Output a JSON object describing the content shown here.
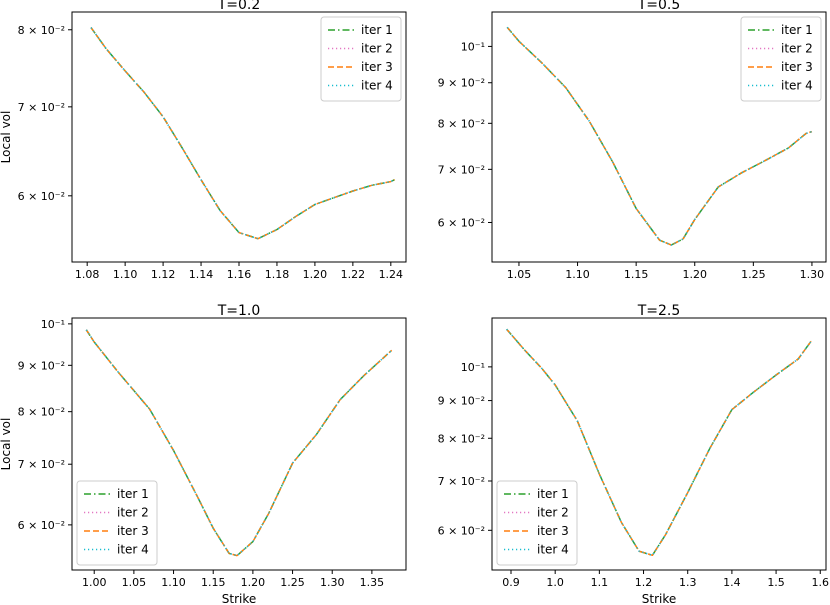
{
  "chart_data": [
    {
      "type": "line",
      "title": "T=0.2",
      "xlabel": "",
      "ylabel": "Local vol",
      "x_ticks": [
        "1.08",
        "1.10",
        "1.12",
        "1.14",
        "1.16",
        "1.18",
        "1.20",
        "1.22",
        "1.24"
      ],
      "y_ticks": [
        "6 × 10⁻²",
        "7 × 10⁻²",
        "8 × 10⁻²"
      ],
      "y_scale": "log",
      "xlim": [
        1.072,
        1.248
      ],
      "ylim": [
        0.0535,
        0.0825
      ],
      "legend": "top-right",
      "grid": false,
      "x": [
        1.082,
        1.09,
        1.1,
        1.11,
        1.12,
        1.13,
        1.14,
        1.15,
        1.16,
        1.17,
        1.18,
        1.19,
        1.2,
        1.21,
        1.22,
        1.23,
        1.24,
        1.242
      ],
      "series": [
        {
          "name": "iter 1",
          "values": [
            0.0803,
            0.0774,
            0.0745,
            0.0718,
            0.0688,
            0.0652,
            0.0617,
            0.0585,
            0.0563,
            0.0557,
            0.0566,
            0.0579,
            0.0591,
            0.0598,
            0.0605,
            0.0611,
            0.0615,
            0.0617
          ]
        },
        {
          "name": "iter 2",
          "values": [
            0.0803,
            0.0774,
            0.0745,
            0.0718,
            0.0688,
            0.0652,
            0.0617,
            0.0585,
            0.0563,
            0.0557,
            0.0566,
            0.0579,
            0.0591,
            0.0598,
            0.0605,
            0.0611,
            0.0615,
            0.0617
          ]
        },
        {
          "name": "iter 3",
          "values": [
            0.0803,
            0.0774,
            0.0745,
            0.0718,
            0.0688,
            0.0652,
            0.0617,
            0.0585,
            0.0563,
            0.0557,
            0.0566,
            0.0579,
            0.0591,
            0.0598,
            0.0605,
            0.0611,
            0.0615,
            0.0617
          ]
        },
        {
          "name": "iter 4",
          "values": [
            0.0803,
            0.0774,
            0.0745,
            0.0718,
            0.0688,
            0.0652,
            0.0617,
            0.0585,
            0.0563,
            0.0557,
            0.0566,
            0.0579,
            0.0591,
            0.0598,
            0.0605,
            0.0611,
            0.0615,
            0.0617
          ]
        }
      ]
    },
    {
      "type": "line",
      "title": "T=0.5",
      "xlabel": "",
      "ylabel": "",
      "x_ticks": [
        "1.05",
        "1.10",
        "1.15",
        "1.20",
        "1.25",
        "1.30"
      ],
      "y_ticks": [
        "6 × 10⁻²",
        "7 × 10⁻²",
        "8 × 10⁻²",
        "9 × 10⁻²",
        "10⁻¹"
      ],
      "y_scale": "log",
      "xlim": [
        1.027,
        1.312
      ],
      "ylim": [
        0.0535,
        0.1105
      ],
      "legend": "top-right",
      "grid": false,
      "x": [
        1.04,
        1.05,
        1.07,
        1.09,
        1.11,
        1.13,
        1.15,
        1.17,
        1.18,
        1.19,
        1.2,
        1.22,
        1.24,
        1.26,
        1.28,
        1.295,
        1.3
      ],
      "series": [
        {
          "name": "iter 1",
          "values": [
            0.1057,
            0.1015,
            0.0952,
            0.0887,
            0.0805,
            0.0715,
            0.0625,
            0.057,
            0.0562,
            0.0572,
            0.0605,
            0.0665,
            0.0693,
            0.0718,
            0.0745,
            0.0777,
            0.0781
          ]
        },
        {
          "name": "iter 2",
          "values": [
            0.1057,
            0.1015,
            0.0952,
            0.0887,
            0.0805,
            0.0715,
            0.0625,
            0.057,
            0.0562,
            0.0572,
            0.0605,
            0.0665,
            0.0693,
            0.0718,
            0.0745,
            0.0777,
            0.0781
          ]
        },
        {
          "name": "iter 3",
          "values": [
            0.1057,
            0.1015,
            0.0952,
            0.0887,
            0.0805,
            0.0715,
            0.0625,
            0.057,
            0.0562,
            0.0572,
            0.0605,
            0.0665,
            0.0693,
            0.0718,
            0.0745,
            0.0777,
            0.0781
          ]
        },
        {
          "name": "iter 4",
          "values": [
            0.1057,
            0.1015,
            0.0952,
            0.0887,
            0.0805,
            0.0715,
            0.0625,
            0.057,
            0.0562,
            0.0572,
            0.0605,
            0.0665,
            0.0693,
            0.0718,
            0.0745,
            0.0777,
            0.0781
          ]
        }
      ]
    },
    {
      "type": "line",
      "title": "T=1.0",
      "xlabel": "Strike",
      "ylabel": "Local vol",
      "x_ticks": [
        "1.00",
        "1.05",
        "1.10",
        "1.15",
        "1.20",
        "1.25",
        "1.30",
        "1.35"
      ],
      "y_ticks": [
        "6 × 10⁻²",
        "7 × 10⁻²",
        "8 × 10⁻²",
        "9 × 10⁻²",
        "10⁻¹"
      ],
      "y_scale": "log",
      "xlim": [
        0.972,
        1.393
      ],
      "ylim": [
        0.0535,
        0.1015
      ],
      "legend": "bottom-left",
      "grid": false,
      "x": [
        0.99,
        1.0,
        1.03,
        1.07,
        1.1,
        1.13,
        1.15,
        1.17,
        1.18,
        1.2,
        1.22,
        1.25,
        1.28,
        1.31,
        1.34,
        1.375
      ],
      "series": [
        {
          "name": "iter 1",
          "values": [
            0.0985,
            0.0955,
            0.0885,
            0.0805,
            0.0725,
            0.0645,
            0.0595,
            0.0558,
            0.0555,
            0.0575,
            0.0618,
            0.0702,
            0.0755,
            0.0825,
            0.0877,
            0.0935
          ]
        },
        {
          "name": "iter 2",
          "values": [
            0.0985,
            0.0955,
            0.0885,
            0.0805,
            0.0725,
            0.0645,
            0.0595,
            0.0558,
            0.0555,
            0.0575,
            0.0618,
            0.0702,
            0.0755,
            0.0825,
            0.0877,
            0.0935
          ]
        },
        {
          "name": "iter 3",
          "values": [
            0.0985,
            0.0955,
            0.0885,
            0.0805,
            0.0725,
            0.0645,
            0.0595,
            0.0558,
            0.0555,
            0.0575,
            0.0618,
            0.0702,
            0.0755,
            0.0825,
            0.0877,
            0.0935
          ]
        },
        {
          "name": "iter 4",
          "values": [
            0.0985,
            0.0955,
            0.0885,
            0.0805,
            0.0725,
            0.0645,
            0.0595,
            0.0558,
            0.0555,
            0.0575,
            0.0618,
            0.0702,
            0.0755,
            0.0825,
            0.0877,
            0.0935
          ]
        }
      ]
    },
    {
      "type": "line",
      "title": "T=2.5",
      "xlabel": "Strike",
      "ylabel": "",
      "x_ticks": [
        "0.9",
        "1.0",
        "1.1",
        "1.2",
        "1.3",
        "1.4",
        "1.5",
        "1.6"
      ],
      "y_ticks": [
        "6 × 10⁻²",
        "7 × 10⁻²",
        "8 × 10⁻²",
        "9 × 10⁻²",
        "10⁻¹"
      ],
      "y_scale": "log",
      "xlim": [
        0.857,
        1.613
      ],
      "ylim": [
        0.053,
        0.1165
      ],
      "legend": "bottom-left",
      "grid": false,
      "x": [
        0.89,
        0.93,
        0.97,
        1.0,
        1.05,
        1.1,
        1.15,
        1.19,
        1.22,
        1.25,
        1.3,
        1.35,
        1.4,
        1.45,
        1.5,
        1.55,
        1.58
      ],
      "series": [
        {
          "name": "iter 1",
          "values": [
            0.1125,
            0.1055,
            0.0995,
            0.0945,
            0.0845,
            0.0715,
            0.0615,
            0.0562,
            0.0555,
            0.0592,
            0.0675,
            0.0775,
            0.0875,
            0.0925,
            0.0975,
            0.1025,
            0.1085
          ]
        },
        {
          "name": "iter 2",
          "values": [
            0.1125,
            0.1055,
            0.0995,
            0.0945,
            0.0845,
            0.0715,
            0.0615,
            0.0562,
            0.0555,
            0.0592,
            0.0675,
            0.0775,
            0.0875,
            0.0925,
            0.0975,
            0.1025,
            0.1085
          ]
        },
        {
          "name": "iter 3",
          "values": [
            0.1125,
            0.1055,
            0.0995,
            0.0945,
            0.0845,
            0.0715,
            0.0615,
            0.0562,
            0.0555,
            0.0592,
            0.0675,
            0.0775,
            0.0875,
            0.0925,
            0.0975,
            0.1025,
            0.1085
          ]
        },
        {
          "name": "iter 4",
          "values": [
            0.1125,
            0.1055,
            0.0995,
            0.0945,
            0.0845,
            0.0715,
            0.0615,
            0.0562,
            0.0555,
            0.0592,
            0.0675,
            0.0775,
            0.0875,
            0.0925,
            0.0975,
            0.1025,
            0.1085
          ]
        }
      ]
    }
  ],
  "styles": {
    "series_colors": [
      "#2ca02c",
      "#e377c2",
      "#ff7f0e",
      "#17becf"
    ],
    "series_dash": [
      "dash-dot",
      "dotted",
      "dashed",
      "dotted"
    ],
    "axis_color": "#000000",
    "background": "#ffffff"
  }
}
